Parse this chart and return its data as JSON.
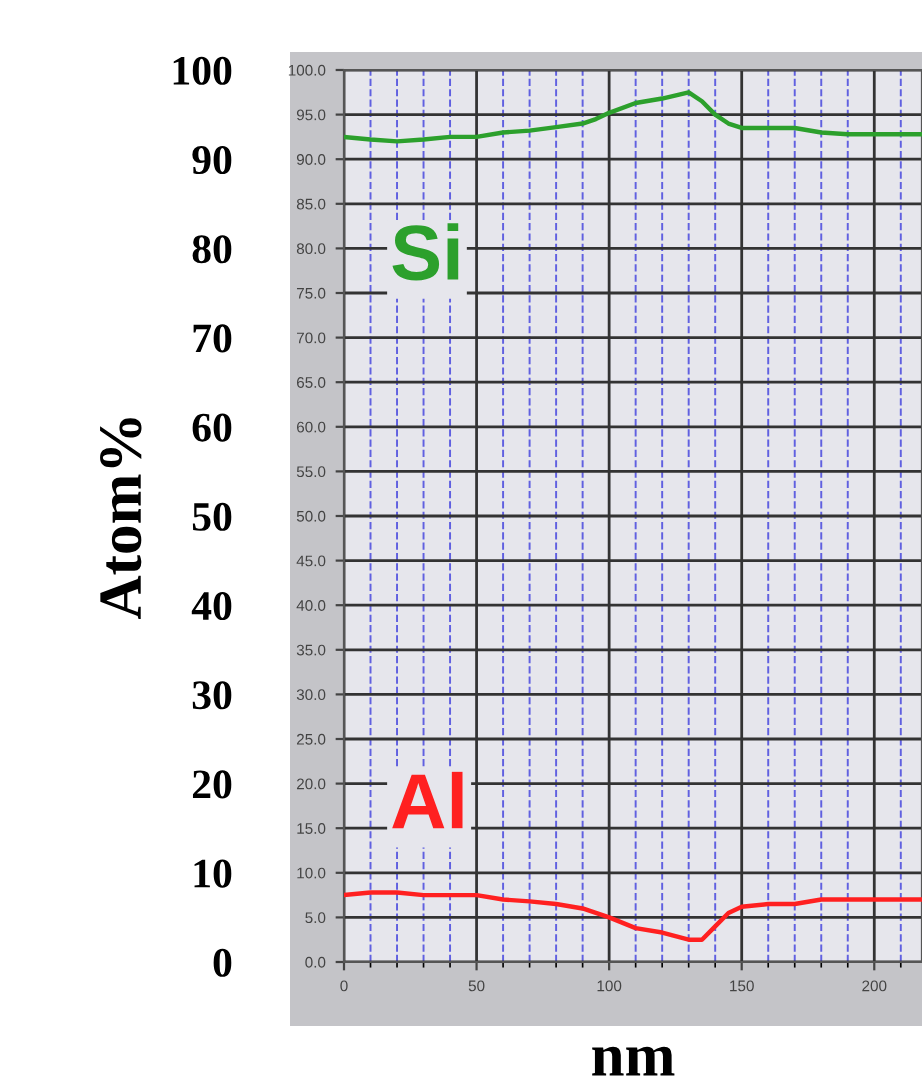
{
  "chart_data": {
    "type": "line",
    "xlabel": "nm",
    "y2label": "Atom%",
    "x": [
      0,
      10,
      20,
      30,
      40,
      50,
      60,
      70,
      80,
      90,
      95,
      100,
      110,
      120,
      130,
      135,
      140,
      145,
      150,
      160,
      170,
      180,
      190,
      200,
      210,
      218
    ],
    "series": [
      {
        "name": "Si",
        "color": "#2ca02c",
        "values": [
          92.5,
          92.2,
          92.0,
          92.2,
          92.5,
          92.5,
          93.0,
          93.2,
          93.6,
          94.0,
          94.5,
          95.2,
          96.3,
          96.8,
          97.5,
          96.5,
          95.0,
          94.0,
          93.5,
          93.5,
          93.5,
          93.0,
          92.8,
          92.8,
          92.8,
          92.8
        ]
      },
      {
        "name": "Al",
        "color": "#ff2020",
        "values": [
          7.5,
          7.8,
          7.8,
          7.5,
          7.5,
          7.5,
          7.0,
          6.8,
          6.5,
          6.0,
          5.5,
          5.0,
          3.8,
          3.3,
          2.5,
          2.5,
          4.0,
          5.5,
          6.2,
          6.5,
          6.5,
          7.0,
          7.0,
          7.0,
          7.0,
          7.0
        ]
      }
    ],
    "xlim": [
      0,
      218
    ],
    "xticks": [
      0,
      {
        "value": 10,
        "label": null
      },
      {
        "value": 20,
        "label": null
      },
      {
        "value": 30,
        "label": null
      },
      {
        "value": 40,
        "label": null
      },
      50,
      {
        "value": 60,
        "label": null
      },
      {
        "value": 70,
        "label": null
      },
      {
        "value": 80,
        "label": null
      },
      {
        "value": 90,
        "label": null
      },
      100,
      {
        "value": 110,
        "label": null
      },
      {
        "value": 120,
        "label": null
      },
      {
        "value": 130,
        "label": null
      },
      {
        "value": 140,
        "label": null
      },
      150,
      {
        "value": 160,
        "label": null
      },
      {
        "value": 170,
        "label": null
      },
      {
        "value": 180,
        "label": null
      },
      {
        "value": 190,
        "label": null
      },
      200,
      {
        "value": 210,
        "label": null
      }
    ],
    "ylim": [
      0,
      100
    ],
    "yticks": [
      {
        "value": 0,
        "label": "0.0"
      },
      {
        "value": 5,
        "label": "5.0"
      },
      {
        "value": 10,
        "label": "10.0"
      },
      {
        "value": 15,
        "label": "15.0"
      },
      {
        "value": 20,
        "label": "20.0"
      },
      {
        "value": 25,
        "label": "25.0"
      },
      {
        "value": 30,
        "label": "30.0"
      },
      {
        "value": 35,
        "label": "35.0"
      },
      {
        "value": 40,
        "label": "40.0"
      },
      {
        "value": 45,
        "label": "45.0"
      },
      {
        "value": 50,
        "label": "50.0"
      },
      {
        "value": 55,
        "label": "55.0"
      },
      {
        "value": 60,
        "label": "60.0"
      },
      {
        "value": 65,
        "label": "65.0"
      },
      {
        "value": 70,
        "label": "70.0"
      },
      {
        "value": 75,
        "label": "75.0"
      },
      {
        "value": 80,
        "label": "80.0"
      },
      {
        "value": 85,
        "label": "85.0"
      },
      {
        "value": 90,
        "label": "90.0"
      },
      {
        "value": 95,
        "label": "95.0"
      },
      {
        "value": 100,
        "label": "100.0"
      }
    ],
    "y2lim": [
      0,
      100
    ],
    "y2ticks": [
      0,
      10,
      20,
      30,
      40,
      50,
      60,
      70,
      80,
      90,
      100
    ],
    "grid": true,
    "line_style": "solid",
    "marker": "none"
  }
}
